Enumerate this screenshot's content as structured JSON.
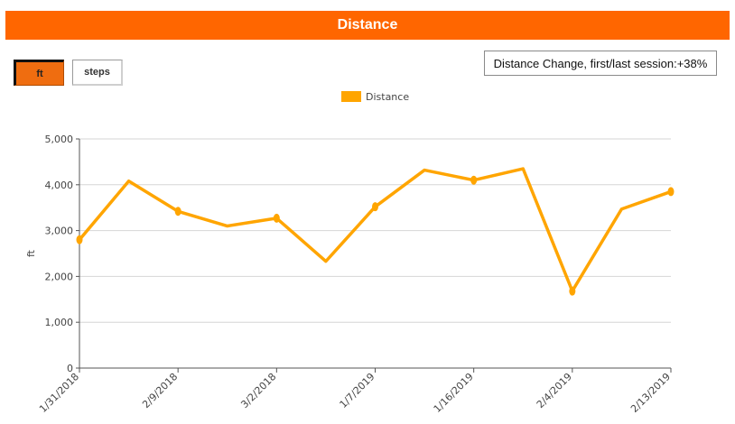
{
  "header": {
    "title": "Distance"
  },
  "unit_toggle": {
    "ft_label": "ft",
    "steps_label": "steps",
    "selected": "ft"
  },
  "summary": {
    "text": "Distance Change, first/last session:+38%"
  },
  "colors": {
    "header": "#ff6600",
    "series": "#ffa500",
    "active_button": "#ef6d10"
  },
  "chart_data": {
    "type": "line",
    "title": "",
    "xlabel": "",
    "ylabel": "ft",
    "ylim": [
      0,
      5000
    ],
    "yticks": [
      0,
      1000,
      2000,
      3000,
      4000,
      5000
    ],
    "ytick_labels": [
      "0",
      "1,000",
      "2,000",
      "3,000",
      "4,000",
      "5,000"
    ],
    "x_tick_labels": [
      "1/31/2018",
      "2/9/2018",
      "3/2/2018",
      "1/7/2019",
      "1/16/2019",
      "2/4/2019",
      "2/13/2019"
    ],
    "grid": true,
    "legend": "top-center",
    "series": [
      {
        "name": "Distance",
        "color": "#ffa500",
        "values": [
          2800,
          4080,
          3420,
          3100,
          3270,
          2330,
          3520,
          4320,
          4100,
          4350,
          1680,
          3470,
          3850
        ],
        "markers": [
          true,
          false,
          true,
          false,
          true,
          false,
          true,
          false,
          true,
          false,
          true,
          false,
          true
        ]
      }
    ]
  }
}
